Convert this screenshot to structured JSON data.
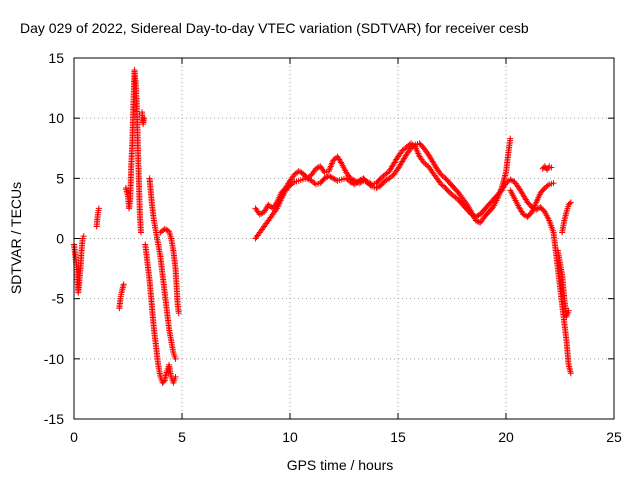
{
  "chart_data": {
    "type": "scatter",
    "title": "Day 029 of 2022, Sidereal Day-to-day VTEC variation (SDTVAR) for receiver cesb",
    "xlabel": "GPS time / hours",
    "ylabel": "SDTVAR / TECUs",
    "xlim": [
      0,
      25
    ],
    "ylim": [
      -15,
      15
    ],
    "xticks": [
      0,
      5,
      10,
      15,
      20,
      25
    ],
    "yticks": [
      -15,
      -10,
      -5,
      0,
      5,
      10,
      15
    ],
    "grid": true,
    "marker": "+",
    "color": "#ff0000",
    "series": [
      {
        "name": "SDTVAR",
        "segments": [
          [
            [
              0.0,
              -0.5
            ],
            [
              0.1,
              -2.0
            ],
            [
              0.15,
              -3.0
            ],
            [
              0.2,
              -4.5
            ],
            [
              0.25,
              -3.5
            ],
            [
              0.3,
              -2.5
            ],
            [
              0.35,
              -1.0
            ],
            [
              0.4,
              0.0
            ],
            [
              0.45,
              0.2
            ]
          ],
          [
            [
              1.05,
              1.0
            ],
            [
              1.1,
              2.0
            ],
            [
              1.15,
              2.5
            ]
          ],
          [
            [
              2.1,
              -5.8
            ],
            [
              2.15,
              -5.0
            ],
            [
              2.2,
              -4.5
            ],
            [
              2.3,
              -3.8
            ]
          ],
          [
            [
              2.4,
              4.2
            ],
            [
              2.5,
              3.5
            ],
            [
              2.55,
              2.5
            ],
            [
              2.6,
              3.2
            ],
            [
              2.65,
              6.0
            ],
            [
              2.7,
              8.0
            ],
            [
              2.75,
              11.0
            ],
            [
              2.8,
              14.0
            ],
            [
              2.85,
              13.0
            ],
            [
              2.9,
              11.5
            ],
            [
              2.95,
              8.0
            ],
            [
              3.0,
              5.0
            ],
            [
              3.05,
              2.0
            ],
            [
              3.1,
              0.5
            ]
          ],
          [
            [
              3.15,
              10.5
            ],
            [
              3.2,
              9.5
            ],
            [
              3.25,
              10.0
            ]
          ],
          [
            [
              3.3,
              -0.5
            ],
            [
              3.4,
              -2.0
            ],
            [
              3.5,
              -3.5
            ],
            [
              3.6,
              -5.5
            ],
            [
              3.7,
              -7.5
            ],
            [
              3.8,
              -9.0
            ],
            [
              3.9,
              -10.5
            ],
            [
              4.0,
              -11.5
            ],
            [
              4.1,
              -12.0
            ],
            [
              4.2,
              -11.8
            ],
            [
              4.3,
              -11.0
            ],
            [
              4.4,
              -10.5
            ],
            [
              4.5,
              -11.5
            ],
            [
              4.6,
              -12.0
            ],
            [
              4.7,
              -11.5
            ]
          ],
          [
            [
              3.5,
              5.0
            ],
            [
              3.6,
              3.0
            ],
            [
              3.7,
              1.5
            ],
            [
              3.8,
              0.5
            ],
            [
              3.9,
              -0.5
            ],
            [
              4.0,
              -1.5
            ],
            [
              4.1,
              -3.0
            ],
            [
              4.2,
              -4.5
            ],
            [
              4.3,
              -6.0
            ],
            [
              4.4,
              -7.5
            ],
            [
              4.5,
              -8.5
            ],
            [
              4.6,
              -9.5
            ],
            [
              4.7,
              -10.0
            ]
          ],
          [
            [
              4.0,
              0.5
            ],
            [
              4.2,
              0.8
            ],
            [
              4.4,
              0.6
            ],
            [
              4.5,
              0.0
            ],
            [
              4.6,
              -1.0
            ],
            [
              4.7,
              -2.5
            ],
            [
              4.75,
              -4.0
            ],
            [
              4.8,
              -5.5
            ],
            [
              4.85,
              -6.2
            ]
          ],
          [
            [
              8.4,
              2.5
            ],
            [
              8.6,
              2.0
            ],
            [
              8.8,
              2.2
            ],
            [
              9.0,
              2.8
            ],
            [
              9.2,
              2.5
            ],
            [
              9.4,
              3.0
            ],
            [
              9.6,
              3.8
            ],
            [
              9.8,
              4.2
            ],
            [
              10.0,
              4.8
            ],
            [
              10.2,
              5.3
            ],
            [
              10.4,
              5.6
            ],
            [
              10.6,
              5.4
            ],
            [
              10.8,
              5.0
            ],
            [
              11.0,
              5.3
            ],
            [
              11.2,
              5.8
            ],
            [
              11.4,
              6.0
            ],
            [
              11.6,
              5.5
            ],
            [
              11.8,
              5.6
            ],
            [
              12.0,
              6.5
            ],
            [
              12.2,
              6.8
            ],
            [
              12.4,
              6.2
            ],
            [
              12.6,
              5.5
            ],
            [
              12.8,
              5.0
            ],
            [
              13.0,
              4.8
            ],
            [
              13.2,
              4.6
            ],
            [
              13.4,
              4.8
            ],
            [
              13.6,
              4.7
            ],
            [
              13.8,
              4.5
            ],
            [
              14.0,
              4.6
            ],
            [
              14.2,
              5.0
            ],
            [
              14.4,
              5.3
            ],
            [
              14.6,
              5.6
            ],
            [
              14.8,
              6.2
            ],
            [
              15.0,
              6.8
            ],
            [
              15.2,
              7.3
            ],
            [
              15.4,
              7.6
            ],
            [
              15.6,
              7.9
            ],
            [
              15.8,
              7.6
            ],
            [
              16.0,
              6.8
            ],
            [
              16.2,
              6.3
            ],
            [
              16.4,
              6.0
            ],
            [
              16.6,
              5.5
            ],
            [
              16.8,
              5.0
            ],
            [
              17.0,
              4.5
            ],
            [
              17.2,
              4.2
            ],
            [
              17.4,
              3.8
            ],
            [
              17.6,
              3.5
            ],
            [
              17.8,
              3.2
            ],
            [
              18.0,
              2.8
            ],
            [
              18.2,
              2.4
            ],
            [
              18.4,
              2.0
            ],
            [
              18.6,
              1.8
            ],
            [
              18.8,
              2.0
            ],
            [
              19.0,
              2.4
            ],
            [
              19.2,
              2.8
            ],
            [
              19.4,
              3.2
            ],
            [
              19.6,
              3.6
            ],
            [
              19.8,
              4.0
            ],
            [
              20.0,
              4.6
            ],
            [
              20.2,
              4.9
            ],
            [
              20.4,
              4.7
            ],
            [
              20.6,
              4.2
            ],
            [
              20.8,
              3.6
            ],
            [
              21.0,
              3.0
            ],
            [
              21.2,
              2.6
            ],
            [
              21.4,
              2.4
            ],
            [
              21.6,
              2.6
            ],
            [
              21.8,
              2.2
            ],
            [
              22.0,
              1.5
            ],
            [
              22.2,
              0.5
            ],
            [
              22.3,
              -1.0
            ],
            [
              22.4,
              -2.5
            ],
            [
              22.5,
              -4.0
            ],
            [
              22.6,
              -5.5
            ],
            [
              22.7,
              -7.0
            ],
            [
              22.8,
              -8.5
            ],
            [
              22.9,
              -10.5
            ],
            [
              23.0,
              -11.2
            ]
          ],
          [
            [
              8.4,
              0.0
            ],
            [
              8.6,
              0.5
            ],
            [
              8.8,
              1.0
            ],
            [
              9.0,
              1.5
            ],
            [
              9.2,
              2.0
            ],
            [
              9.4,
              2.5
            ],
            [
              9.6,
              3.3
            ],
            [
              9.8,
              4.0
            ],
            [
              10.0,
              4.4
            ],
            [
              10.2,
              4.7
            ],
            [
              10.4,
              4.8
            ],
            [
              10.6,
              4.9
            ],
            [
              10.8,
              5.0
            ],
            [
              11.0,
              4.8
            ],
            [
              11.2,
              4.5
            ],
            [
              11.4,
              4.6
            ],
            [
              11.6,
              5.0
            ],
            [
              11.8,
              5.2
            ],
            [
              12.0,
              5.0
            ],
            [
              12.2,
              4.8
            ],
            [
              12.4,
              4.9
            ],
            [
              12.6,
              5.0
            ],
            [
              12.8,
              4.7
            ],
            [
              13.0,
              4.5
            ],
            [
              13.2,
              4.8
            ],
            [
              13.4,
              5.0
            ],
            [
              13.6,
              4.6
            ],
            [
              13.8,
              4.3
            ],
            [
              14.0,
              4.2
            ],
            [
              14.2,
              4.4
            ],
            [
              14.4,
              4.8
            ],
            [
              14.6,
              5.0
            ],
            [
              14.8,
              5.3
            ],
            [
              15.0,
              5.8
            ],
            [
              15.2,
              6.4
            ],
            [
              15.4,
              7.0
            ],
            [
              15.6,
              7.5
            ],
            [
              15.8,
              7.8
            ],
            [
              16.0,
              7.9
            ],
            [
              16.2,
              7.5
            ],
            [
              16.4,
              7.0
            ],
            [
              16.6,
              6.4
            ],
            [
              16.8,
              5.8
            ],
            [
              17.0,
              5.3
            ],
            [
              17.2,
              5.0
            ],
            [
              17.4,
              4.6
            ],
            [
              17.6,
              4.2
            ],
            [
              17.8,
              3.8
            ],
            [
              18.0,
              3.3
            ],
            [
              18.2,
              2.8
            ],
            [
              18.4,
              2.2
            ],
            [
              18.6,
              1.5
            ],
            [
              18.8,
              1.3
            ],
            [
              19.0,
              1.8
            ],
            [
              19.2,
              2.2
            ],
            [
              19.4,
              2.6
            ],
            [
              19.6,
              3.3
            ],
            [
              19.8,
              4.2
            ],
            [
              20.0,
              5.5
            ],
            [
              20.1,
              7.0
            ],
            [
              20.2,
              8.3
            ]
          ],
          [
            [
              20.2,
              4.0
            ],
            [
              20.4,
              3.3
            ],
            [
              20.6,
              2.6
            ],
            [
              20.8,
              2.0
            ],
            [
              21.0,
              1.8
            ],
            [
              21.2,
              2.2
            ],
            [
              21.4,
              3.0
            ],
            [
              21.6,
              3.8
            ],
            [
              21.8,
              4.2
            ],
            [
              22.0,
              4.5
            ],
            [
              22.2,
              4.6
            ]
          ],
          [
            [
              21.7,
              5.8
            ],
            [
              21.8,
              6.0
            ],
            [
              21.9,
              5.7
            ],
            [
              22.0,
              6.0
            ],
            [
              22.1,
              5.9
            ]
          ],
          [
            [
              22.6,
              0.5
            ],
            [
              22.7,
              1.5
            ],
            [
              22.8,
              2.2
            ],
            [
              22.9,
              2.8
            ],
            [
              23.0,
              3.0
            ]
          ],
          [
            [
              22.4,
              -1.0
            ],
            [
              22.5,
              -2.0
            ],
            [
              22.6,
              -3.0
            ],
            [
              22.7,
              -5.0
            ],
            [
              22.8,
              -6.5
            ],
            [
              22.9,
              -6.0
            ]
          ]
        ]
      }
    ]
  }
}
